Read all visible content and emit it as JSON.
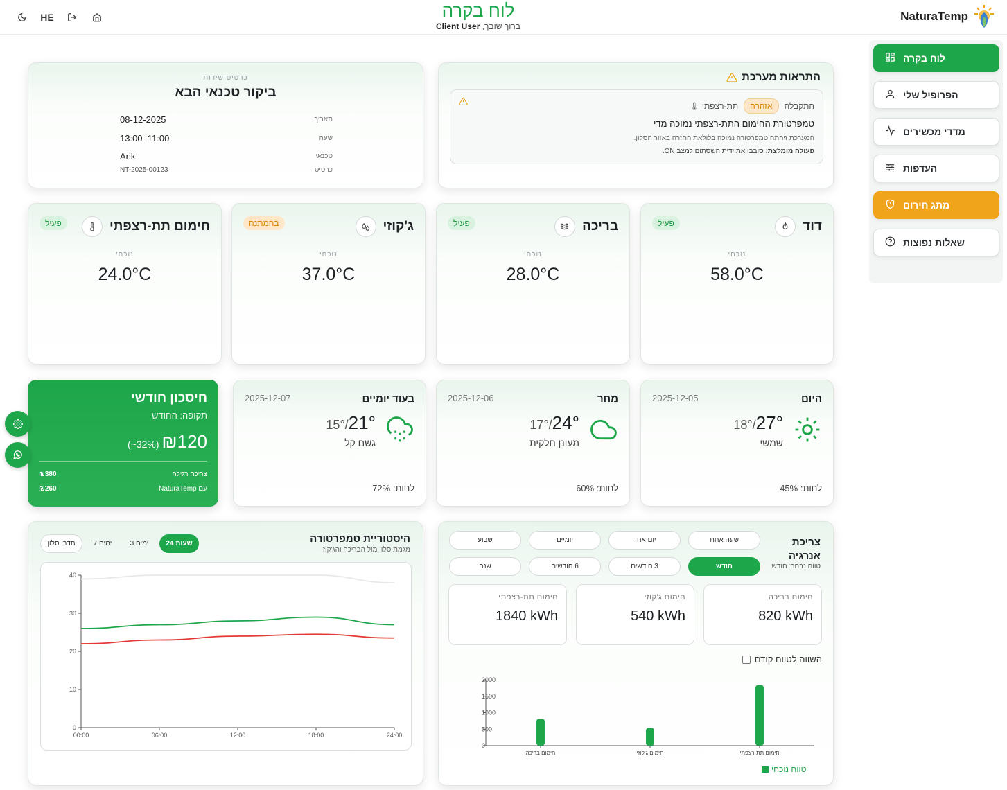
{
  "header": {
    "title": "לוח בקרה",
    "greeting": "ברוך שובך,",
    "user": "Client User",
    "lang": "HE",
    "brand": "NaturaTemp"
  },
  "sidebar": {
    "items": [
      {
        "label": "לוח בקרה",
        "icon": "grid-icon"
      },
      {
        "label": "הפרופיל שלי",
        "icon": "user-icon"
      },
      {
        "label": "מדדי מכשירים",
        "icon": "activity-icon"
      },
      {
        "label": "העדפות",
        "icon": "sliders-icon"
      },
      {
        "label": "מתג חירום",
        "icon": "shield-icon"
      },
      {
        "label": "שאלות נפוצות",
        "icon": "help-icon"
      }
    ]
  },
  "alerts": {
    "title": "התראות מערכת",
    "device": "תת-רצפתי",
    "level": "אזהרה",
    "state": "התקבלה",
    "headline": "טמפרטורת החימום התת-רצפתי נמוכה מדי",
    "detail": "המערכת זיהתה טמפרטורה נמוכה בלולאת החזרה באזור הסלון.",
    "action_label": "פעולה מומלצת:",
    "action": "סובבו את ידית השסתום למצב ON."
  },
  "service": {
    "caption": "כרטיס שירות",
    "title": "ביקור טכנאי הבא",
    "rows": [
      {
        "key": "תאריך",
        "value": "08-12-2025"
      },
      {
        "key": "שעה",
        "value": "11:00–13:00"
      },
      {
        "key": "טכנאי",
        "value": "Arik"
      },
      {
        "key": "כרטיס",
        "value": "NT-2025-00123"
      }
    ]
  },
  "devices": [
    {
      "name": "דוד",
      "status": "פעיל",
      "caption": "נוכחי",
      "temp": "58.0°C",
      "icon": "flame-icon"
    },
    {
      "name": "בריכה",
      "status": "פעיל",
      "caption": "נוכחי",
      "temp": "28.0°C",
      "icon": "waves-icon"
    },
    {
      "name": "ג'קוזי",
      "status": "בהמתנה",
      "caption": "נוכחי",
      "temp": "37.0°C",
      "icon": "droplets-icon"
    },
    {
      "name": "חימום תת-רצפתי",
      "status": "פעיל",
      "caption": "נוכחי",
      "temp": "24.0°C",
      "icon": "thermometer-icon"
    }
  ],
  "weather": [
    {
      "day": "היום",
      "date": "2025-12-05",
      "high": "27°",
      "low": "18°",
      "desc": "שמשי",
      "humidity": "לחות: 45%",
      "icon": "sun-icon"
    },
    {
      "day": "מחר",
      "date": "2025-12-06",
      "high": "24°",
      "low": "17°",
      "desc": "מעונן חלקית",
      "humidity": "לחות: 60%",
      "icon": "cloud-icon"
    },
    {
      "day": "בעוד יומיים",
      "date": "2025-12-07",
      "high": "21°",
      "low": "15°",
      "desc": "גשם קל",
      "humidity": "לחות: 72%",
      "icon": "rain-icon"
    }
  ],
  "savings": {
    "title": "חיסכון חודשי",
    "period": "תקופה: החודש",
    "amount": "₪120",
    "percent": "(~32%)",
    "regular_label": "צריכה רגילה",
    "regular_value": "₪380",
    "with_label": "עם NaturaTemp",
    "with_value": "₪260"
  },
  "temp_history": {
    "title": "היסטוריית טמפרטורה",
    "subtitle": "מגמת סלון מול הבריכה והג'קוזי",
    "ranges": [
      "24 שעות",
      "3 ימים",
      "7 ימים"
    ],
    "room": "חדר: סלון"
  },
  "energy": {
    "title": "צריכת אנרגיה",
    "selected_label": "טווח נבחר: חודש",
    "ranges": [
      "שעה אחת",
      "יום אחד",
      "יומיים",
      "שבוע",
      "חודש",
      "3 חודשים",
      "6 חודשים",
      "שנה"
    ],
    "stats": [
      {
        "label": "חימום בריכה",
        "value": "820 kWh"
      },
      {
        "label": "חימום ג'קוזי",
        "value": "540 kWh"
      },
      {
        "label": "חימום תת-רצפתי",
        "value": "1840 kWh"
      }
    ],
    "compare_label": "השווה לטווח קודם",
    "legend": "טווח נוכחי"
  },
  "colors": {
    "accent": "#1ea64a",
    "warning": "#f0a41b",
    "line_red": "#e53935"
  },
  "chart_data": [
    {
      "type": "line",
      "x": [
        "00:00",
        "06:00",
        "12:00",
        "18:00",
        "24:00"
      ],
      "ylim": [
        0,
        40
      ],
      "yticks": [
        0,
        10,
        20,
        30,
        40
      ],
      "series": [
        {
          "values": [
            26,
            27,
            28,
            29,
            27
          ],
          "color": "#1ea64a"
        },
        {
          "values": [
            22,
            23,
            24,
            24.5,
            23.5
          ],
          "color": "#e53935"
        },
        {
          "values": [
            39,
            40,
            40,
            40,
            38
          ],
          "color": "#e6e9e8"
        }
      ]
    },
    {
      "type": "bar",
      "categories": [
        "חימום בריכה",
        "חימום ג'קוזי",
        "חימום תת-רצפתי"
      ],
      "values": [
        820,
        540,
        1840
      ],
      "ylim": [
        0,
        2000
      ],
      "yticks": [
        0,
        500,
        1000,
        1500,
        2000
      ],
      "legend": "טווח נוכחי"
    }
  ]
}
